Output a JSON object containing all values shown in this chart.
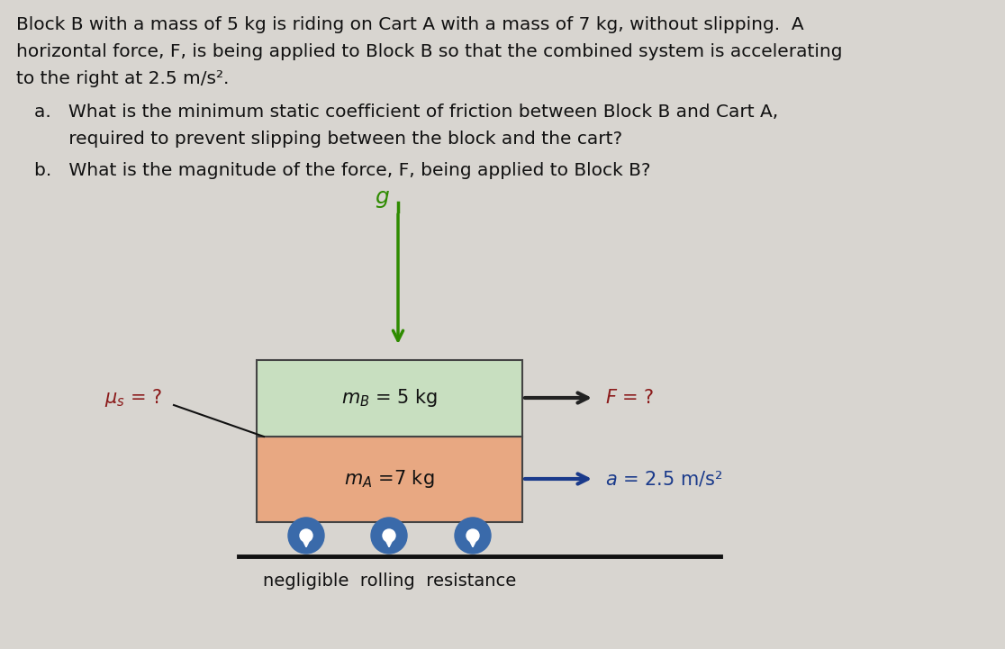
{
  "background_color": "#d8d5d0",
  "block_B_color": "#c8dfc0",
  "cart_A_color": "#e8a882",
  "block_B_label": "$m_B$ = 5 kg",
  "cart_A_label": "$m_A$ =7 kg",
  "mu_label": "$\\mu_s$ = ?",
  "F_label": "$F$ = ?",
  "a_label": "$a$ = 2.5 m/s²",
  "g_label": "$g$",
  "negligible_text": "negligible  rolling  resistance",
  "wheel_color": "#3a6aaa",
  "g_arrow_color": "#2e8b00",
  "g_label_color": "#2e8b00",
  "F_arrow_color": "#222222",
  "F_label_color": "#8b1a1a",
  "a_arrow_color": "#1a3a8b",
  "a_label_color": "#1a3a8b",
  "mu_label_color": "#8b1a1a",
  "text_color": "#111111",
  "line1": "Block B with a mass of 5 kg is riding on Cart A with a mass of 7 kg, without slipping.  A",
  "line2": "horizontal force, F, is being applied to Block B so that the combined system is accelerating",
  "line3": "to the right at 2.5 m/s².",
  "line_a1": "a.   What is the minimum static coefficient of friction between Block B and Cart A,",
  "line_a2": "      required to prevent slipping between the block and the cart?",
  "line_b": "b.   What is the magnitude of the force, F, being applied to Block B?"
}
